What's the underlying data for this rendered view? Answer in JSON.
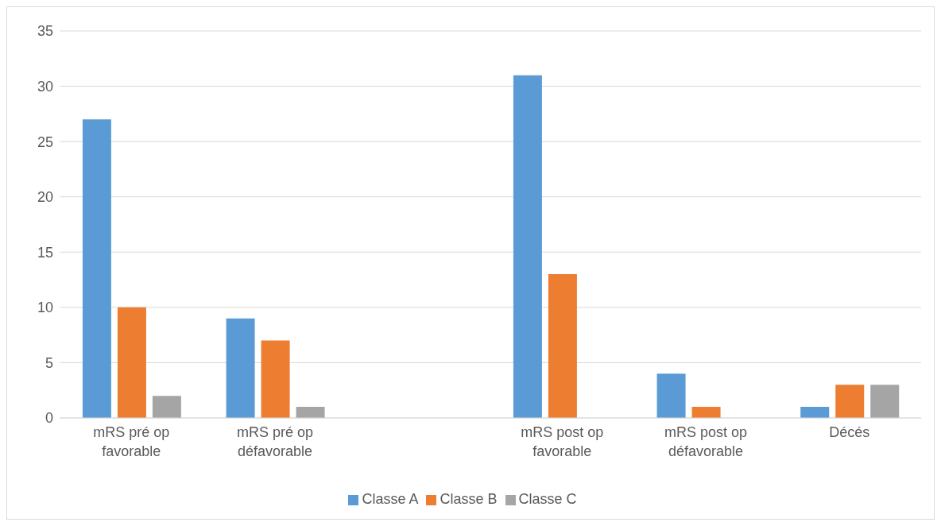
{
  "chart_data": {
    "type": "bar",
    "categories": [
      "mRS pré op favorable",
      "mRS pré op défavorable",
      null,
      "mRS post op favorable",
      "mRS post op défavorable",
      "Décés"
    ],
    "series": [
      {
        "name": "Classe A",
        "color": "#5b9bd5",
        "values": [
          27,
          9,
          null,
          31,
          4,
          1
        ]
      },
      {
        "name": "Classe B",
        "color": "#ed7d31",
        "values": [
          10,
          7,
          null,
          13,
          1,
          3
        ]
      },
      {
        "name": "Classe C",
        "color": "#a5a5a5",
        "values": [
          2,
          1,
          null,
          0,
          0,
          3
        ]
      }
    ],
    "ylim": [
      0,
      35
    ],
    "yticks": [
      0,
      5,
      10,
      15,
      20,
      25,
      30,
      35
    ],
    "grid": "y",
    "legend": "bottom"
  }
}
